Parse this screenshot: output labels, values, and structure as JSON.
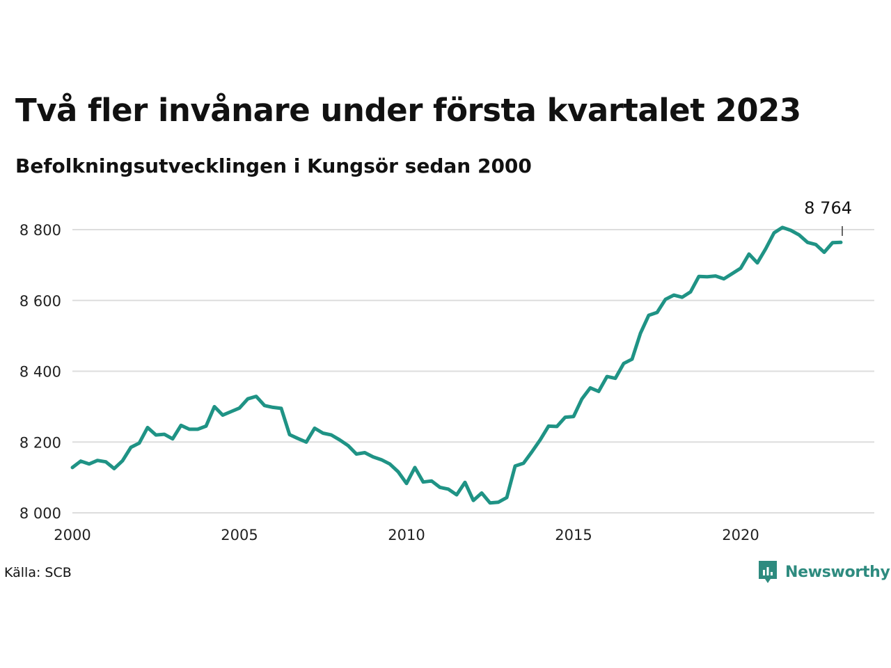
{
  "title": "Två fler invånare under första kvartalet 2023",
  "subtitle": "Befolkningsutvecklingen i Kungsör sedan 2000",
  "source": "Källa: SCB",
  "brand": {
    "name": "Newsworthy",
    "color": "#2e8b7f"
  },
  "chart_data": {
    "type": "line",
    "title": "Två fler invånare under första kvartalet 2023",
    "subtitle": "Befolkningsutvecklingen i Kungsör sedan 2000",
    "xlabel": "",
    "ylabel": "",
    "xlim": [
      2000,
      2024
    ],
    "ylim": [
      8000,
      8850
    ],
    "x_ticks": [
      2000,
      2005,
      2010,
      2015,
      2020
    ],
    "x_tick_labels": [
      "2000",
      "2005",
      "2010",
      "2015",
      "2020"
    ],
    "y_ticks": [
      8000,
      8200,
      8400,
      8600,
      8800
    ],
    "y_tick_labels": [
      "8 000",
      "8 200",
      "8 400",
      "8 600",
      "8 800"
    ],
    "grid": true,
    "line_color": "#1f9385",
    "annotation": {
      "x": 2023.0,
      "y": 8764,
      "label": "8 764"
    },
    "series": [
      {
        "x": [
          2000.0,
          2000.25,
          2000.5,
          2000.75,
          2001.0,
          2001.25,
          2001.5,
          2001.75,
          2002.0,
          2002.25,
          2002.5,
          2002.75,
          2003.0,
          2003.25,
          2003.5,
          2003.75,
          2004.0,
          2004.25,
          2004.5,
          2004.75,
          2005.0,
          2005.25,
          2005.5,
          2005.75,
          2006.0,
          2006.25,
          2006.5,
          2006.75,
          2007.0,
          2007.25,
          2007.5,
          2007.75,
          2008.0,
          2008.25,
          2008.5,
          2008.75,
          2009.0,
          2009.25,
          2009.5,
          2009.75,
          2010.0,
          2010.25,
          2010.5,
          2010.75,
          2011.0,
          2011.25,
          2011.5,
          2011.75,
          2012.0,
          2012.25,
          2012.5,
          2012.75,
          2013.0,
          2013.25,
          2013.5,
          2013.75,
          2014.0,
          2014.25,
          2014.5,
          2014.75,
          2015.0,
          2015.25,
          2015.5,
          2015.75,
          2016.0,
          2016.25,
          2016.5,
          2016.75,
          2017.0,
          2017.25,
          2017.5,
          2017.75,
          2018.0,
          2018.25,
          2018.5,
          2018.75,
          2019.0,
          2019.25,
          2019.5,
          2019.75,
          2020.0,
          2020.25,
          2020.5,
          2020.75,
          2021.0,
          2021.25,
          2021.5,
          2021.75,
          2022.0,
          2022.25,
          2022.5,
          2022.75,
          2023.0
        ],
        "values": [
          8128,
          8146,
          8138,
          8148,
          8144,
          8125,
          8147,
          8185,
          8197,
          8241,
          8220,
          8222,
          8209,
          8247,
          8236,
          8236,
          8245,
          8300,
          8276,
          8286,
          8296,
          8322,
          8329,
          8303,
          8298,
          8295,
          8221,
          8210,
          8200,
          8239,
          8225,
          8220,
          8206,
          8190,
          8166,
          8170,
          8158,
          8150,
          8138,
          8116,
          8083,
          8128,
          8087,
          8090,
          8072,
          8067,
          8051,
          8086,
          8035,
          8056,
          8028,
          8030,
          8043,
          8132,
          8140,
          8172,
          8206,
          8245,
          8244,
          8270,
          8272,
          8322,
          8353,
          8343,
          8385,
          8380,
          8422,
          8434,
          8507,
          8558,
          8566,
          8603,
          8615,
          8609,
          8624,
          8668,
          8667,
          8669,
          8661,
          8676,
          8691,
          8731,
          8706,
          8746,
          8791,
          8806,
          8798,
          8785,
          8764,
          8758,
          8736,
          8763,
          8764
        ]
      }
    ]
  }
}
